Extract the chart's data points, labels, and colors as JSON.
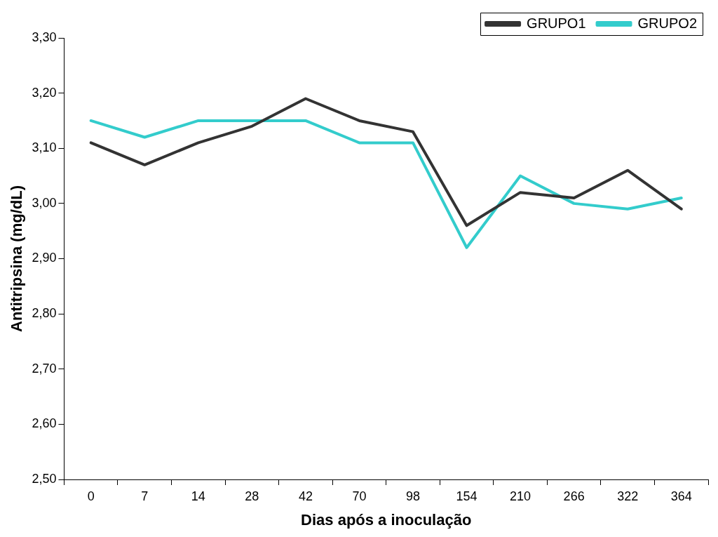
{
  "chart_data": {
    "type": "line",
    "xlabel": "Dias após a inoculação",
    "ylabel": "Antitripsina (mg/dL)",
    "categories": [
      "0",
      "7",
      "14",
      "28",
      "42",
      "70",
      "98",
      "154",
      "210",
      "266",
      "322",
      "364"
    ],
    "series": [
      {
        "name": "GRUPO1",
        "color": "#333333",
        "values": [
          3.11,
          3.07,
          3.11,
          3.14,
          3.19,
          3.15,
          3.13,
          2.96,
          3.02,
          3.01,
          3.06,
          2.99
        ]
      },
      {
        "name": "GRUPO2",
        "color": "#33cccc",
        "values": [
          3.15,
          3.12,
          3.15,
          3.15,
          3.15,
          3.11,
          3.11,
          2.92,
          3.05,
          3.0,
          2.99,
          3.01
        ]
      }
    ],
    "ylim": [
      2.5,
      3.3
    ],
    "yticks": [
      {
        "value": 2.5,
        "label": "2,50"
      },
      {
        "value": 2.6,
        "label": "2,60"
      },
      {
        "value": 2.7,
        "label": "2,70"
      },
      {
        "value": 2.8,
        "label": "2,80"
      },
      {
        "value": 2.9,
        "label": "2,90"
      },
      {
        "value": 3.0,
        "label": "3,00"
      },
      {
        "value": 3.1,
        "label": "3,10"
      },
      {
        "value": 3.2,
        "label": "3,20"
      },
      {
        "value": 3.3,
        "label": "3,30"
      }
    ],
    "grid": false,
    "legend": "top right",
    "marker": "none",
    "line_style": "solid"
  }
}
